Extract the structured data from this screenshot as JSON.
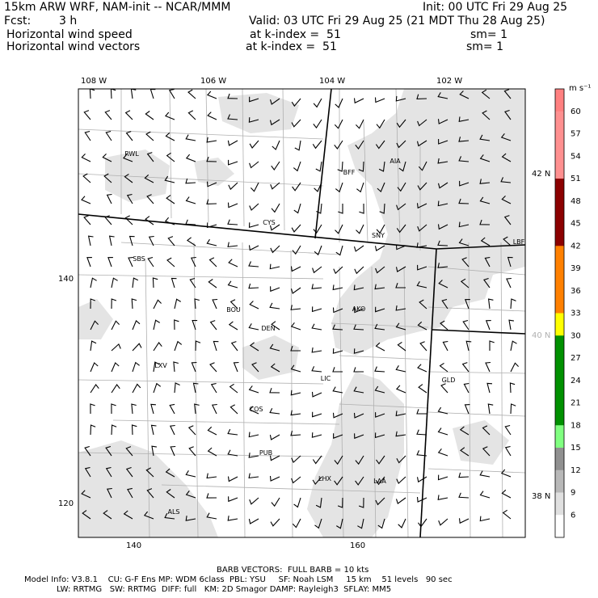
{
  "header": {
    "title": "15km ARW WRF, NAM-init -- NCAR/MMM",
    "init": "Init: 00 UTC Fri 29 Aug 25",
    "fcst_label": "Fcst:",
    "fcst_value": "3 h",
    "valid": "Valid: 03 UTC Fri 29 Aug 25 (21 MDT Thu 28 Aug 25)",
    "field1_name": "Horizontal wind speed",
    "field1_level": "at k-index =  51",
    "field1_sm": "sm= 1",
    "field2_name": "Horizontal wind vectors",
    "field2_level": "at k-index =  51",
    "field2_sm": "sm= 1"
  },
  "map": {
    "lon_labels": [
      "108 W",
      "106 W",
      "104 W",
      "102 W"
    ],
    "lat_labels": [
      "42 N",
      "40 N",
      "38 N"
    ],
    "grid_x_labels": [
      "140",
      "160"
    ],
    "grid_y_labels": [
      "140",
      "120"
    ],
    "stations": [
      {
        "id": "RWL"
      },
      {
        "id": "BFF"
      },
      {
        "id": "AIA"
      },
      {
        "id": "CYS"
      },
      {
        "id": "SNY"
      },
      {
        "id": "LBF"
      },
      {
        "id": "SBS"
      },
      {
        "id": "AKO"
      },
      {
        "id": "BOU"
      },
      {
        "id": "DEN"
      },
      {
        "id": "LXV"
      },
      {
        "id": "LIC"
      },
      {
        "id": "GLD"
      },
      {
        "id": "COS"
      },
      {
        "id": "PUB"
      },
      {
        "id": "LHX"
      },
      {
        "id": "LAA"
      },
      {
        "id": "ALS"
      }
    ],
    "shade_color": "#e4e4e4"
  },
  "colorbar": {
    "units": "m s⁻¹",
    "levels": [
      "60",
      "57",
      "54",
      "51",
      "48",
      "45",
      "42",
      "39",
      "36",
      "33",
      "30",
      "27",
      "24",
      "21",
      "18",
      "15",
      "12",
      "9",
      "6"
    ],
    "colors": [
      "#ff8080",
      "#ff9090",
      "#ff9090",
      "#ff9090",
      "#8b0000",
      "#8b0000",
      "#8b0000",
      "#ff8000",
      "#ff8000",
      "#ff8000",
      "#ffff00",
      "#009000",
      "#009000",
      "#009000",
      "#009000",
      "#80ff80",
      "#909090",
      "#b8b8b8",
      "#e0e0e0",
      "#ffffff"
    ]
  },
  "footer": {
    "barb_line": "BARB VECTORS:  FULL BARB = 10 kts",
    "model_line1": "Model Info: V3.8.1    CU: G-F Ens MP: WDM 6class  PBL: YSU     SF: Noah LSM     15 km    51 levels   90 sec",
    "model_line2": "LW: RRTMG   SW: RRTMG  DIFF: full   KM: 2D Smagor DAMP: Rayleigh3  SFLAY: MM5"
  }
}
